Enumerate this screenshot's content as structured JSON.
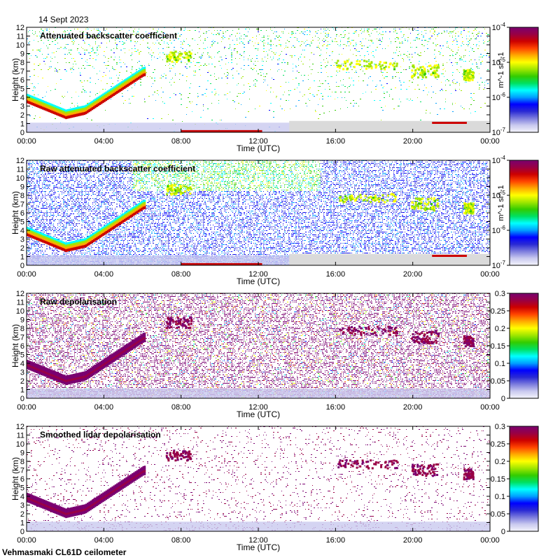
{
  "date_label": "14 Sept 2023",
  "footer_label": "Vehmasmaki CL61D ceilometer",
  "colors": {
    "background": "#ffffff",
    "no_data": "#dadada",
    "colormap": [
      "#f4f4fb",
      "#c9c9ef",
      "#7c7cdd",
      "#2a2ad4",
      "#0000ff",
      "#00a0ff",
      "#00ffff",
      "#00e060",
      "#33cc00",
      "#a0e600",
      "#ffff00",
      "#ffaa00",
      "#ff4400",
      "#cc0000",
      "#990044",
      "#7a0070"
    ]
  },
  "chart_data": [
    {
      "type": "heatmap",
      "title": "Attenuated backscatter coefficient",
      "xlabel": "Time (UTC)",
      "ylabel": "Height (km)",
      "x_ticks": [
        "00:00",
        "04:00",
        "08:00",
        "12:00",
        "16:00",
        "20:00",
        "00:00"
      ],
      "y_ticks": [
        "0",
        "1",
        "2",
        "3",
        "4",
        "5",
        "6",
        "7",
        "8",
        "9",
        "10",
        "11",
        "12"
      ],
      "ylim": [
        0,
        12
      ],
      "colorbar": {
        "scale": "log",
        "range": [
          1e-07,
          0.0001
        ],
        "ticks": [
          "10^-7",
          "10^-6",
          "10^-5",
          "10^-4"
        ],
        "label": "m^-1 sr^-1"
      }
    },
    {
      "type": "heatmap",
      "title": "Raw attenuated backscatter coefficient",
      "xlabel": "Time (UTC)",
      "ylabel": "Height (km)",
      "x_ticks": [
        "00:00",
        "04:00",
        "08:00",
        "12:00",
        "16:00",
        "20:00",
        "00:00"
      ],
      "y_ticks": [
        "0",
        "1",
        "2",
        "3",
        "4",
        "5",
        "6",
        "7",
        "8",
        "9",
        "10",
        "11",
        "12"
      ],
      "ylim": [
        0,
        12
      ],
      "colorbar": {
        "scale": "log",
        "range": [
          1e-07,
          0.0001
        ],
        "ticks": [
          "10^-7",
          "10^-6",
          "10^-5",
          "10^-4"
        ],
        "label": "m^-1 sr^-1"
      }
    },
    {
      "type": "heatmap",
      "title": "Raw depolarisation",
      "xlabel": "Time (UTC)",
      "ylabel": "Height (km)",
      "x_ticks": [
        "00:00",
        "04:00",
        "08:00",
        "12:00",
        "16:00",
        "20:00",
        "00:00"
      ],
      "y_ticks": [
        "0",
        "1",
        "2",
        "3",
        "4",
        "5",
        "6",
        "7",
        "8",
        "9",
        "10",
        "11",
        "12"
      ],
      "ylim": [
        0,
        12
      ],
      "colorbar": {
        "scale": "linear",
        "range": [
          0,
          0.3
        ],
        "ticks": [
          "0",
          "0.05",
          "0.1",
          "0.15",
          "0.2",
          "0.25",
          "0.3"
        ],
        "label": ""
      }
    },
    {
      "type": "heatmap",
      "title": "Smoothed lidar depolarisation",
      "xlabel": "Time (UTC)",
      "ylabel": "Height (km)",
      "x_ticks": [
        "00:00",
        "04:00",
        "08:00",
        "12:00",
        "16:00",
        "20:00",
        "00:00"
      ],
      "y_ticks": [
        "0",
        "1",
        "2",
        "3",
        "4",
        "5",
        "6",
        "7",
        "8",
        "9",
        "10",
        "11",
        "12"
      ],
      "ylim": [
        0,
        12
      ],
      "colorbar": {
        "scale": "linear",
        "range": [
          0,
          0.3
        ],
        "ticks": [
          "0",
          "0.05",
          "0.1",
          "0.15",
          "0.2",
          "0.25",
          "0.3"
        ],
        "label": ""
      }
    }
  ]
}
